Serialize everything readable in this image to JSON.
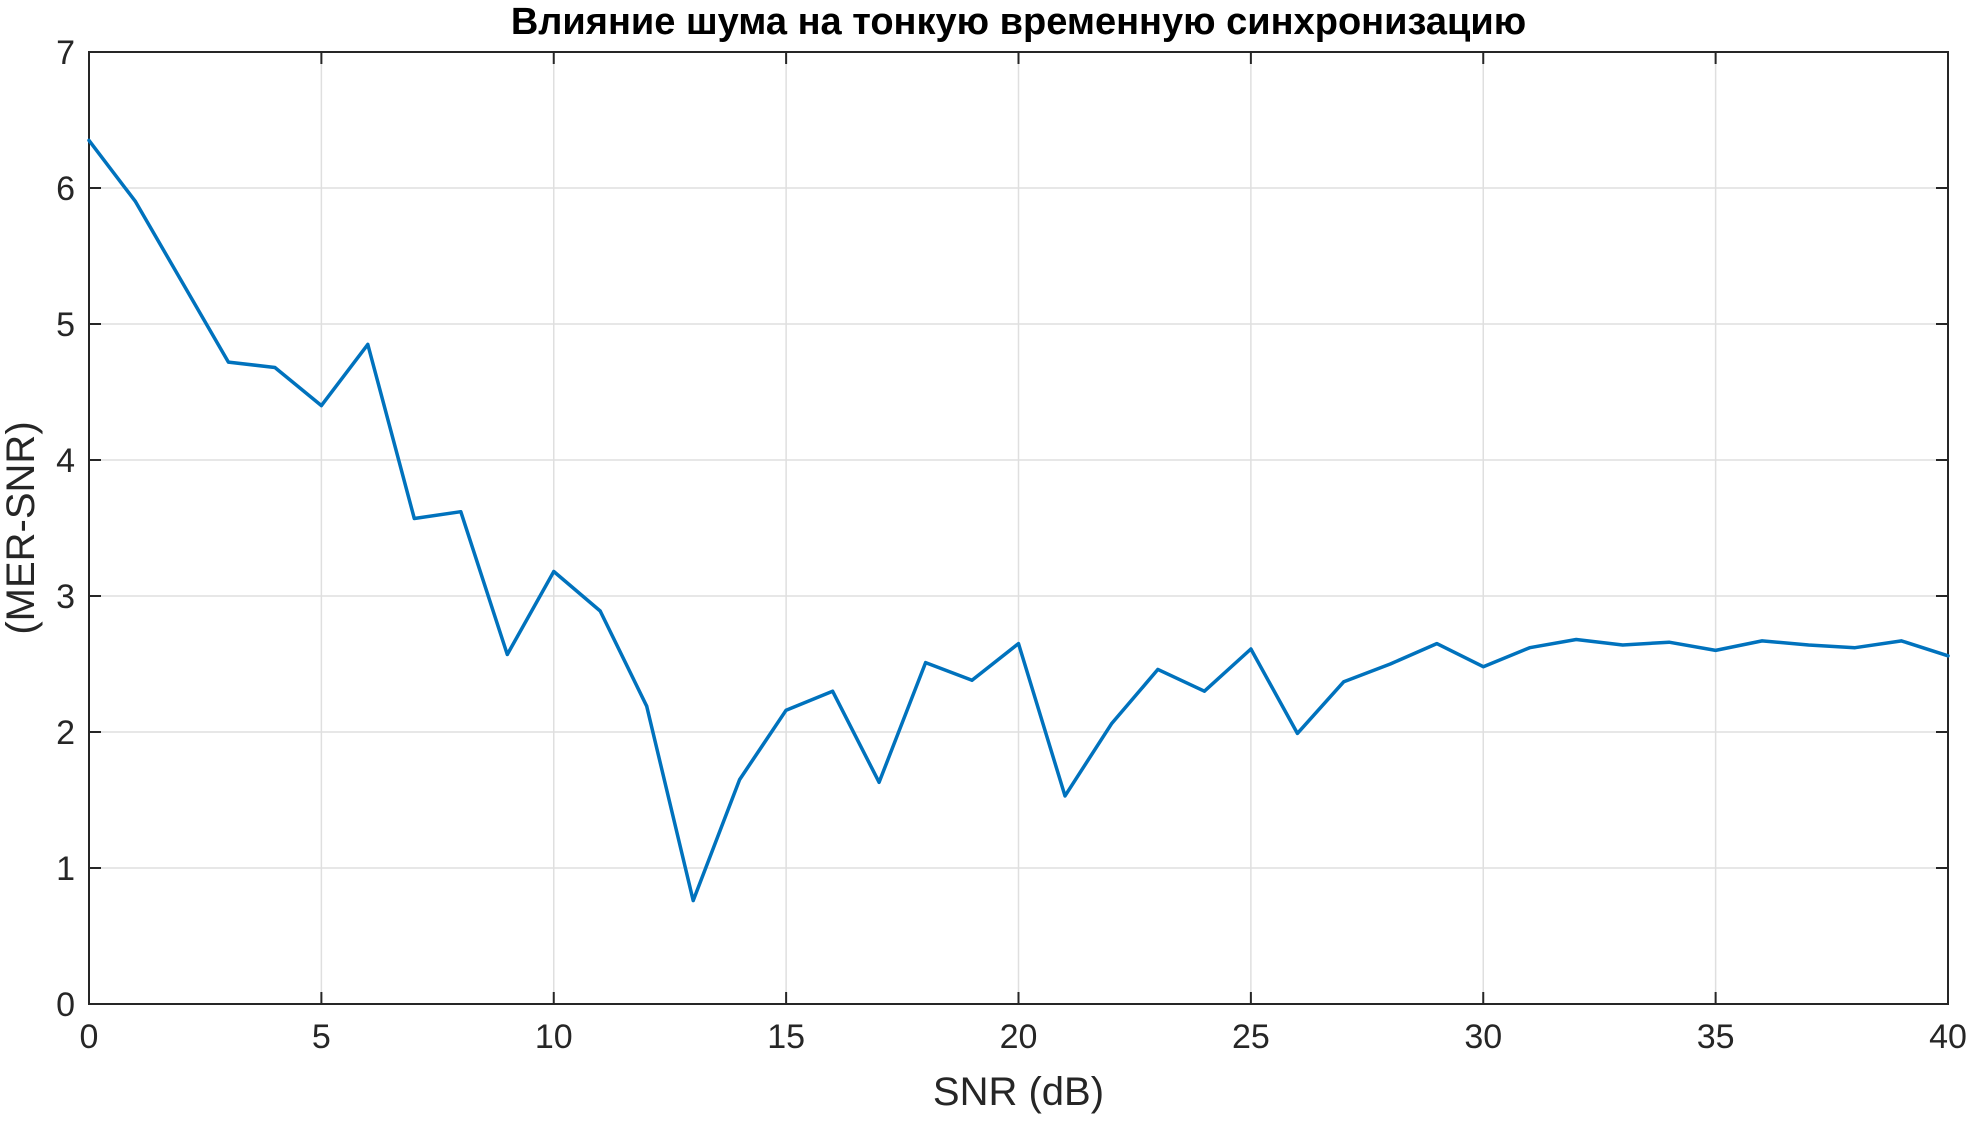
{
  "chart_data": {
    "type": "line",
    "title": "Влияние шума на тонкую временную синхронизацию",
    "xlabel": "SNR (dB)",
    "ylabel": "(MER-SNR)",
    "xlim": [
      0,
      40
    ],
    "ylim": [
      0,
      7
    ],
    "xticks": [
      0,
      5,
      10,
      15,
      20,
      25,
      30,
      35,
      40
    ],
    "yticks": [
      0,
      1,
      2,
      3,
      4,
      5,
      6,
      7
    ],
    "grid": true,
    "series": [
      {
        "color": "#0072BD",
        "x": [
          0,
          1,
          2,
          3,
          4,
          5,
          6,
          7,
          8,
          9,
          10,
          11,
          12,
          13,
          14,
          15,
          16,
          17,
          18,
          19,
          20,
          21,
          22,
          23,
          24,
          25,
          26,
          27,
          28,
          29,
          30,
          31,
          32,
          33,
          34,
          35,
          36,
          37,
          38,
          39,
          40
        ],
        "y": [
          6.35,
          5.9,
          5.31,
          4.72,
          4.68,
          4.4,
          4.85,
          3.57,
          3.62,
          2.57,
          3.18,
          2.89,
          2.19,
          0.76,
          1.65,
          2.16,
          2.3,
          1.63,
          2.51,
          2.38,
          2.65,
          1.53,
          2.06,
          2.46,
          2.3,
          2.61,
          1.99,
          2.37,
          2.5,
          2.65,
          2.48,
          2.62,
          2.68,
          2.64,
          2.66,
          2.6,
          2.67,
          2.64,
          2.62,
          2.67,
          2.56
        ]
      }
    ]
  }
}
